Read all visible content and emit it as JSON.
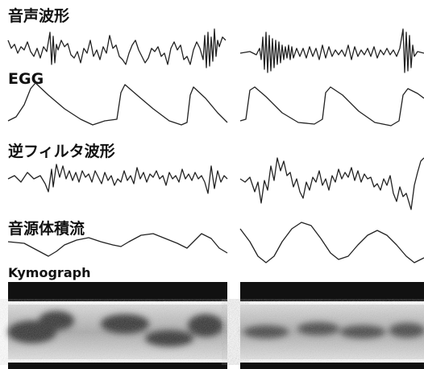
{
  "labels": {
    "speech": "音声波形",
    "egg": "EGG",
    "inverse": "逆フィルタ波形",
    "flow": "音源体積流",
    "kymo": "Kymograph"
  }
}
